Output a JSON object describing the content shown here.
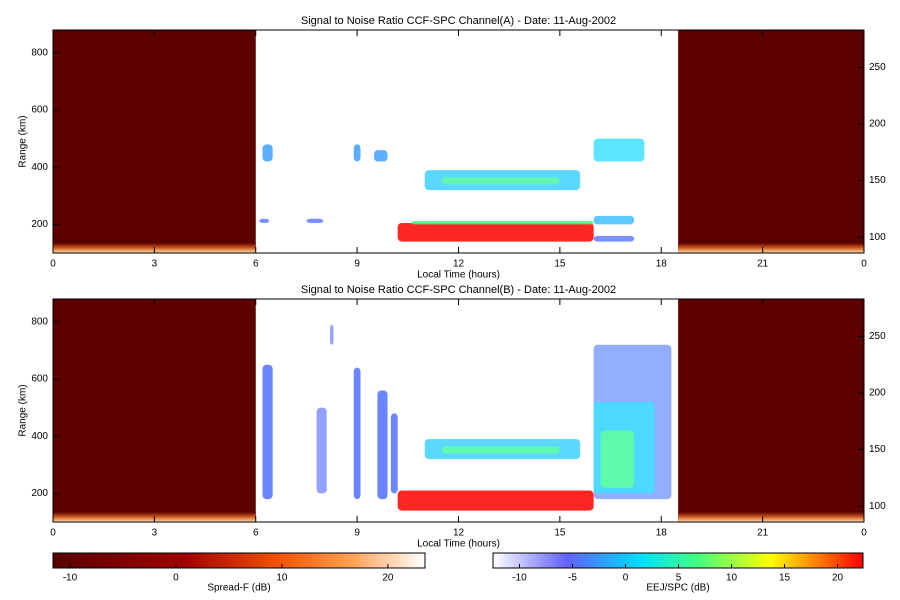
{
  "chart_data": [
    {
      "type": "heatmap",
      "title": "Signal to Noise Ratio CCF-SPC Channel(A) - Date: 11-Aug-2002",
      "xlabel": "Local Time (hours)",
      "ylabel": "Range (km)",
      "xlim": [
        0,
        24
      ],
      "xticks": [
        0,
        3,
        6,
        9,
        12,
        15,
        18,
        21,
        {
          "value": 24,
          "label": "0"
        }
      ],
      "ylim": [
        100,
        880
      ],
      "yticks": [
        200,
        400,
        600,
        800
      ],
      "y2lim": [
        86,
        283
      ],
      "y2ticks": [
        100,
        150,
        200,
        250
      ]
    },
    {
      "type": "heatmap",
      "title": "Signal to Noise Ratio CCF-SPC Channel(B) - Date: 11-Aug-2002",
      "xlabel": "Local Time (hours)",
      "ylabel": "Range (km)",
      "xlim": [
        0,
        24
      ],
      "xticks": [
        0,
        3,
        6,
        9,
        12,
        15,
        18,
        21,
        {
          "value": 24,
          "label": "0"
        }
      ],
      "ylim": [
        100,
        880
      ],
      "yticks": [
        200,
        400,
        600,
        800
      ],
      "y2lim": [
        86,
        283
      ],
      "y2ticks": [
        100,
        150,
        200,
        250
      ]
    },
    {
      "type": "colorbar",
      "xlabel": "Spread-F (dB)",
      "xlim": [
        -11.6,
        23.5
      ],
      "xticks": [
        -10,
        0,
        10,
        20
      ],
      "gradient": "gSF"
    },
    {
      "type": "colorbar",
      "xlabel": "EEJ/SPC (dB)",
      "xlim": [
        -12.5,
        22.4
      ],
      "xticks": [
        -10,
        -5,
        0,
        5,
        10,
        15,
        20
      ],
      "gradient": "gEEJ"
    }
  ]
}
